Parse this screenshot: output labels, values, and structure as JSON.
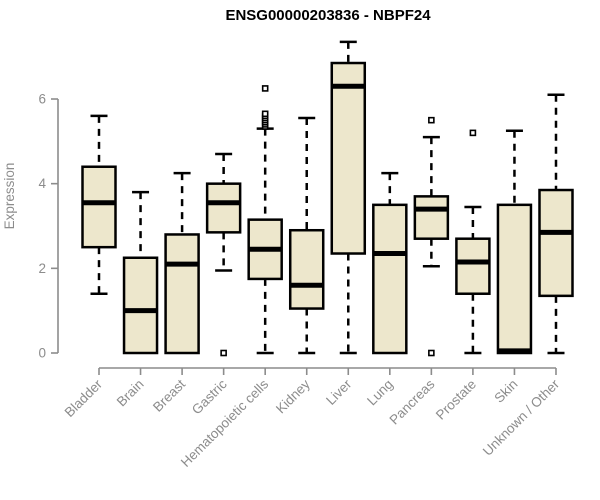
{
  "chart_data": {
    "type": "boxplot",
    "title": "ENSG00000203836 - NBPF24",
    "ylabel": "Expression",
    "xlabel": "",
    "yticks": [
      0,
      2,
      4,
      6
    ],
    "ylim": [
      0,
      7.5
    ],
    "grid": false,
    "legend": "none",
    "categories": [
      "Bladder",
      "Brain",
      "Breast",
      "Gastric",
      "Hematopoietic cells",
      "Kidney",
      "Liver",
      "Lung",
      "Pancreas",
      "Prostate",
      "Skin",
      "Unknown / Other"
    ],
    "series": [
      {
        "category": "Bladder",
        "whisker_low": 1.4,
        "q1": 2.5,
        "median": 3.55,
        "q3": 4.4,
        "whisker_high": 5.6,
        "outliers": []
      },
      {
        "category": "Brain",
        "whisker_low": 0,
        "q1": 0,
        "median": 1.0,
        "q3": 2.25,
        "whisker_high": 3.8,
        "outliers": []
      },
      {
        "category": "Breast",
        "whisker_low": 0,
        "q1": 0,
        "median": 2.1,
        "q3": 2.8,
        "whisker_high": 4.25,
        "outliers": []
      },
      {
        "category": "Gastric",
        "whisker_low": 1.95,
        "q1": 2.85,
        "median": 3.55,
        "q3": 4.0,
        "whisker_high": 4.7,
        "outliers": [
          0
        ]
      },
      {
        "category": "Hematopoietic cells",
        "whisker_low": 0,
        "q1": 1.75,
        "median": 2.45,
        "q3": 3.15,
        "whisker_high": 5.3,
        "outliers": [
          5.35,
          5.4,
          5.45,
          5.5,
          5.55,
          5.6,
          5.65,
          6.25
        ]
      },
      {
        "category": "Kidney",
        "whisker_low": 0,
        "q1": 1.05,
        "median": 1.6,
        "q3": 2.9,
        "whisker_high": 5.55,
        "outliers": []
      },
      {
        "category": "Liver",
        "whisker_low": 0,
        "q1": 2.35,
        "median": 6.3,
        "q3": 6.85,
        "whisker_high": 7.35,
        "outliers": []
      },
      {
        "category": "Lung",
        "whisker_low": 0,
        "q1": 0,
        "median": 2.35,
        "q3": 3.5,
        "whisker_high": 4.25,
        "outliers": []
      },
      {
        "category": "Pancreas",
        "whisker_low": 2.05,
        "q1": 2.7,
        "median": 3.4,
        "q3": 3.7,
        "whisker_high": 5.1,
        "outliers": [
          5.5,
          0
        ]
      },
      {
        "category": "Prostate",
        "whisker_low": 0,
        "q1": 1.4,
        "median": 2.15,
        "q3": 2.7,
        "whisker_high": 3.45,
        "outliers": [
          5.2
        ]
      },
      {
        "category": "Skin",
        "whisker_low": 0,
        "q1": 0,
        "median": 0.05,
        "q3": 3.5,
        "whisker_high": 5.25,
        "outliers": []
      },
      {
        "category": "Unknown / Other",
        "whisker_low": 0,
        "q1": 1.35,
        "median": 2.85,
        "q3": 3.85,
        "whisker_high": 6.1,
        "outliers": []
      }
    ],
    "colors": {
      "box_fill": "#EDE7CC",
      "box_stroke": "#000000",
      "median": "#000000",
      "axis": "#8C8C8C",
      "tick_text": "#8C8C8C",
      "title": "#000000",
      "background": "#FFFFFF"
    }
  }
}
